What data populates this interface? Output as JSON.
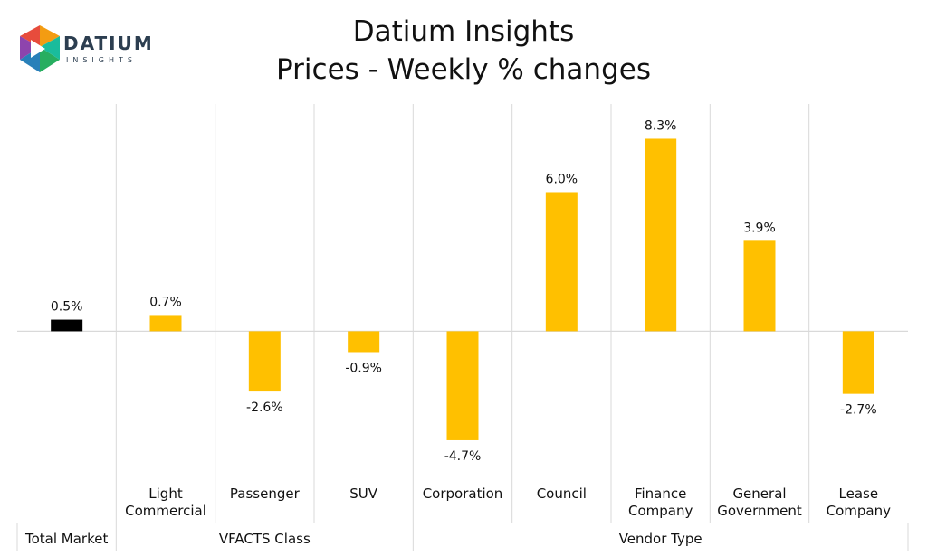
{
  "titles": [
    "Datium Insights",
    "Prices - Weekly % changes"
  ],
  "logo": {
    "word": "DATIUM",
    "sub": "INSIGHTS"
  },
  "colors": {
    "total_bar": "#000000",
    "bar": "#FFC000",
    "gridline": "#d9d9d9",
    "axis": "#bfbfbf"
  },
  "chart_data": {
    "type": "bar",
    "title": "Datium Insights",
    "subtitle": "Prices - Weekly % changes",
    "categories": [
      [
        "Total Market"
      ],
      [
        "Light",
        "Commercial"
      ],
      [
        "Passenger"
      ],
      [
        "SUV"
      ],
      [
        "Corporation"
      ],
      [
        "Council"
      ],
      [
        "Finance",
        "Company"
      ],
      [
        "General",
        "Government"
      ],
      [
        "Lease",
        "Company"
      ]
    ],
    "values": [
      0.5,
      0.7,
      -2.6,
      -0.9,
      -4.7,
      6.0,
      8.3,
      3.9,
      -2.7
    ],
    "value_labels": [
      "0.5%",
      "0.7%",
      "-2.6%",
      "-0.9%",
      "-4.7%",
      "6.0%",
      "8.3%",
      "3.9%",
      "-2.7%"
    ],
    "groups": [
      {
        "label": "",
        "start": 0,
        "end": 0
      },
      {
        "label": "VFACTS Class",
        "start": 1,
        "end": 3
      },
      {
        "label": "Vendor Type",
        "start": 4,
        "end": 8
      }
    ],
    "ylim": [
      -6.3,
      9.8
    ],
    "grid": true,
    "legend": "none"
  }
}
